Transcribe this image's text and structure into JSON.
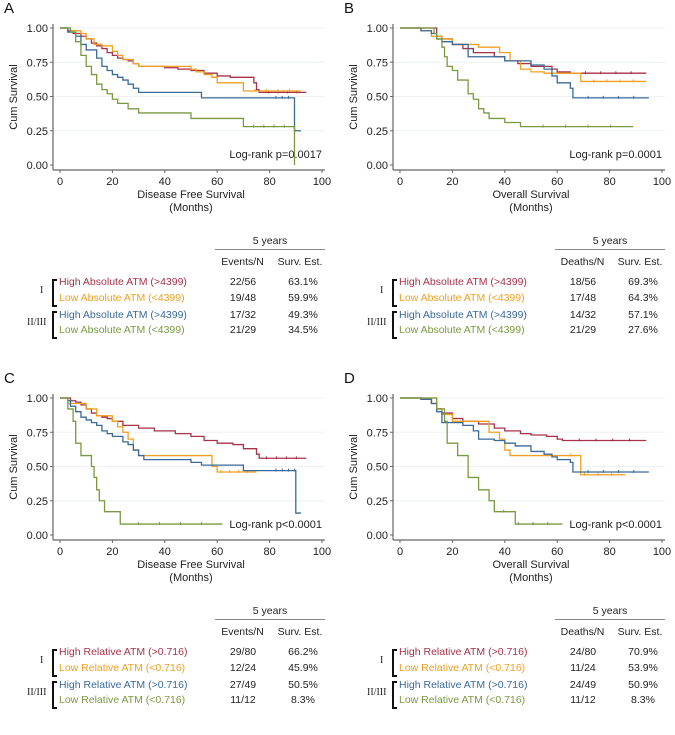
{
  "colors": {
    "high_I": "#a8324a",
    "low_I": "#f0a020",
    "high_II": "#3a6a9a",
    "low_II": "#7a9a40"
  },
  "chart_data": [
    {
      "panel": "A",
      "type": "line",
      "subtype": "kaplan-meier",
      "xlabel": "Disease Free Survival",
      "xlabel2": "(Months)",
      "ylabel": "Cum Survival",
      "xlim": [
        0,
        100
      ],
      "ylim": [
        0,
        1
      ],
      "xticks": [
        "0",
        "20",
        "40",
        "60",
        "80",
        "100"
      ],
      "yticks": [
        "0.00",
        "0.25",
        "0.50",
        "0.75",
        "1.00"
      ],
      "annotation": "Log-rank p=0.0017",
      "series": [
        {
          "name": "High Absolute ATM (>4399)",
          "group": "I",
          "color_key": "high_I",
          "x": [
            0,
            3,
            5,
            8,
            10,
            12,
            14,
            16,
            18,
            20,
            22,
            24,
            26,
            28,
            30,
            35,
            40,
            45,
            50,
            55,
            60,
            65,
            70,
            74,
            75,
            76,
            80,
            85,
            94
          ],
          "y": [
            1,
            0.98,
            0.96,
            0.94,
            0.92,
            0.89,
            0.87,
            0.85,
            0.82,
            0.8,
            0.78,
            0.77,
            0.76,
            0.74,
            0.72,
            0.72,
            0.71,
            0.7,
            0.69,
            0.67,
            0.65,
            0.64,
            0.64,
            0.6,
            0.55,
            0.53,
            0.53,
            0.53,
            0.53
          ]
        },
        {
          "name": "Low Absolute ATM (<4399)",
          "group": "I",
          "color_key": "low_I",
          "x": [
            0,
            4,
            8,
            10,
            13,
            16,
            20,
            22,
            24,
            28,
            30,
            40,
            45,
            50,
            52,
            55,
            58,
            60,
            65,
            70,
            75,
            80,
            92
          ],
          "y": [
            1,
            0.98,
            0.96,
            0.92,
            0.88,
            0.87,
            0.83,
            0.8,
            0.77,
            0.74,
            0.72,
            0.72,
            0.72,
            0.7,
            0.68,
            0.66,
            0.64,
            0.6,
            0.6,
            0.54,
            0.54,
            0.54,
            0.54
          ]
        },
        {
          "name": "High Absolute ATM (>4399)",
          "group": "II/III",
          "color_key": "high_II",
          "x": [
            0,
            3,
            6,
            8,
            10,
            14,
            16,
            18,
            20,
            22,
            24,
            26,
            28,
            30,
            40,
            50,
            54,
            60,
            70,
            80,
            89,
            89.5,
            92
          ],
          "y": [
            1,
            0.97,
            0.94,
            0.88,
            0.84,
            0.78,
            0.72,
            0.69,
            0.66,
            0.64,
            0.62,
            0.59,
            0.56,
            0.53,
            0.53,
            0.53,
            0.49,
            0.49,
            0.49,
            0.49,
            0.49,
            0.25,
            0.25
          ]
        },
        {
          "name": "Low Absolute ATM (<4399)",
          "group": "II/III",
          "color_key": "low_II",
          "x": [
            0,
            4,
            6,
            8,
            10,
            12,
            14,
            16,
            18,
            20,
            22,
            26,
            30,
            35,
            40,
            50,
            55,
            60,
            70,
            80,
            89,
            89.5
          ],
          "y": [
            1,
            0.97,
            0.9,
            0.8,
            0.72,
            0.66,
            0.59,
            0.55,
            0.52,
            0.48,
            0.45,
            0.41,
            0.38,
            0.38,
            0.38,
            0.34,
            0.34,
            0.34,
            0.28,
            0.28,
            0.28,
            0.0
          ]
        }
      ]
    },
    {
      "panel": "B",
      "type": "line",
      "subtype": "kaplan-meier",
      "xlabel": "Overall Survival",
      "xlabel2": "(Months)",
      "ylabel": "Cum Survival",
      "xlim": [
        0,
        100
      ],
      "ylim": [
        0,
        1
      ],
      "xticks": [
        "0",
        "20",
        "40",
        "60",
        "80",
        "100"
      ],
      "yticks": [
        "0.00",
        "0.25",
        "0.50",
        "0.75",
        "1.00"
      ],
      "annotation": "Log-rank p=0.0001",
      "series": [
        {
          "name": "High Absolute ATM (>4399)",
          "group": "I",
          "color_key": "high_I",
          "x": [
            0,
            12,
            14,
            16,
            20,
            24,
            28,
            36,
            40,
            45,
            50,
            55,
            58,
            60,
            65,
            70,
            80,
            94
          ],
          "y": [
            1,
            1,
            0.94,
            0.92,
            0.88,
            0.85,
            0.82,
            0.79,
            0.76,
            0.74,
            0.72,
            0.72,
            0.7,
            0.68,
            0.67,
            0.67,
            0.67,
            0.67
          ]
        },
        {
          "name": "Low Absolute ATM (<4399)",
          "group": "I",
          "color_key": "low_I",
          "x": [
            0,
            8,
            12,
            16,
            20,
            26,
            30,
            38,
            42,
            46,
            50,
            55,
            60,
            65,
            69,
            70,
            80,
            94
          ],
          "y": [
            1,
            0.98,
            0.94,
            0.92,
            0.88,
            0.88,
            0.86,
            0.82,
            0.76,
            0.7,
            0.68,
            0.67,
            0.67,
            0.67,
            0.61,
            0.61,
            0.61,
            0.61
          ]
        },
        {
          "name": "High Absolute ATM (>4399)",
          "group": "II/III",
          "color_key": "high_II",
          "x": [
            0,
            8,
            12,
            14,
            16,
            20,
            24,
            26,
            36,
            40,
            46,
            50,
            55,
            58,
            60,
            65,
            66,
            70,
            80,
            95
          ],
          "y": [
            1,
            0.98,
            0.96,
            0.92,
            0.9,
            0.88,
            0.88,
            0.79,
            0.79,
            0.76,
            0.76,
            0.73,
            0.7,
            0.65,
            0.6,
            0.56,
            0.49,
            0.49,
            0.49,
            0.49
          ]
        },
        {
          "name": "Low Absolute ATM (<4399)",
          "group": "II/III",
          "color_key": "low_II",
          "x": [
            0,
            12,
            13,
            14,
            16,
            17,
            18,
            20,
            22,
            26,
            28,
            30,
            32,
            34,
            36,
            40,
            46,
            60,
            80,
            89
          ],
          "y": [
            1,
            1,
            0.96,
            0.92,
            0.86,
            0.79,
            0.72,
            0.69,
            0.62,
            0.52,
            0.48,
            0.41,
            0.38,
            0.34,
            0.34,
            0.31,
            0.28,
            0.28,
            0.28,
            0.28
          ]
        }
      ]
    },
    {
      "panel": "C",
      "type": "line",
      "subtype": "kaplan-meier",
      "xlabel": "Disease Free Survival",
      "xlabel2": "(Months)",
      "ylabel": "Cum Survival",
      "xlim": [
        0,
        100
      ],
      "ylim": [
        0,
        1
      ],
      "xticks": [
        "0",
        "20",
        "40",
        "60",
        "80",
        "100"
      ],
      "yticks": [
        "0.00",
        "0.25",
        "0.50",
        "0.75",
        "1.00"
      ],
      "annotation": "Log-rank p<0.0001",
      "series": [
        {
          "name": "High Relative ATM (>0.716)",
          "group": "I",
          "color_key": "high_I",
          "x": [
            0,
            4,
            6,
            8,
            10,
            12,
            14,
            16,
            18,
            20,
            24,
            30,
            36,
            44,
            50,
            55,
            60,
            66,
            70,
            75,
            76,
            80,
            94
          ],
          "y": [
            1,
            0.98,
            0.97,
            0.95,
            0.92,
            0.89,
            0.87,
            0.86,
            0.85,
            0.83,
            0.8,
            0.78,
            0.76,
            0.74,
            0.72,
            0.69,
            0.67,
            0.66,
            0.63,
            0.59,
            0.56,
            0.56,
            0.56
          ]
        },
        {
          "name": "Low Relative ATM (<0.716)",
          "group": "I",
          "color_key": "low_I",
          "x": [
            0,
            3,
            8,
            10,
            14,
            20,
            22,
            24,
            26,
            28,
            30,
            40,
            50,
            58,
            60,
            70,
            75
          ],
          "y": [
            1,
            0.96,
            0.96,
            0.92,
            0.87,
            0.83,
            0.79,
            0.75,
            0.7,
            0.62,
            0.58,
            0.58,
            0.58,
            0.5,
            0.46,
            0.46,
            0.46
          ]
        },
        {
          "name": "High Relative ATM (>0.716)",
          "group": "II/III",
          "color_key": "high_II",
          "x": [
            0,
            3,
            4,
            6,
            8,
            10,
            12,
            14,
            16,
            18,
            20,
            24,
            26,
            28,
            30,
            32,
            40,
            50,
            54,
            60,
            70,
            80,
            89,
            90,
            92
          ],
          "y": [
            1,
            0.98,
            0.94,
            0.9,
            0.86,
            0.84,
            0.82,
            0.8,
            0.76,
            0.74,
            0.72,
            0.68,
            0.66,
            0.62,
            0.58,
            0.55,
            0.55,
            0.53,
            0.51,
            0.51,
            0.47,
            0.47,
            0.47,
            0.16,
            0.16
          ]
        },
        {
          "name": "Low Relative ATM (<0.716)",
          "group": "II/III",
          "color_key": "low_II",
          "x": [
            0,
            3,
            5,
            6,
            8,
            12,
            13,
            14,
            15,
            16,
            17,
            22,
            23,
            40,
            62
          ],
          "y": [
            1,
            0.92,
            0.83,
            0.67,
            0.58,
            0.5,
            0.42,
            0.33,
            0.25,
            0.25,
            0.17,
            0.17,
            0.08,
            0.08,
            0.08
          ]
        }
      ]
    },
    {
      "panel": "D",
      "type": "line",
      "subtype": "kaplan-meier",
      "xlabel": "Overall Survival",
      "xlabel2": "(Months)",
      "ylabel": "Cum Survival",
      "xlim": [
        0,
        100
      ],
      "ylim": [
        0,
        1
      ],
      "xticks": [
        "0",
        "20",
        "40",
        "60",
        "80",
        "100"
      ],
      "yticks": [
        "0.00",
        "0.25",
        "0.50",
        "0.75",
        "1.00"
      ],
      "annotation": "Log-rank p<0.0001",
      "series": [
        {
          "name": "High Relative ATM (>0.716)",
          "group": "I",
          "color_key": "high_I",
          "x": [
            0,
            8,
            12,
            14,
            16,
            20,
            24,
            30,
            36,
            40,
            46,
            50,
            56,
            60,
            62,
            70,
            80,
            94
          ],
          "y": [
            1,
            0.99,
            0.96,
            0.92,
            0.89,
            0.85,
            0.83,
            0.81,
            0.78,
            0.76,
            0.74,
            0.73,
            0.72,
            0.7,
            0.69,
            0.69,
            0.69,
            0.69
          ]
        },
        {
          "name": "Low Relative ATM (<0.716)",
          "group": "I",
          "color_key": "low_I",
          "x": [
            0,
            12,
            14,
            16,
            18,
            20,
            30,
            34,
            38,
            40,
            42,
            50,
            60,
            69,
            70,
            86
          ],
          "y": [
            1,
            1,
            0.92,
            0.88,
            0.88,
            0.83,
            0.83,
            0.75,
            0.7,
            0.62,
            0.58,
            0.58,
            0.58,
            0.44,
            0.44,
            0.44
          ]
        },
        {
          "name": "High Relative ATM (>0.716)",
          "group": "II/III",
          "color_key": "high_II",
          "x": [
            0,
            8,
            12,
            14,
            16,
            20,
            24,
            28,
            30,
            36,
            40,
            44,
            50,
            55,
            58,
            60,
            65,
            66,
            70,
            80,
            95
          ],
          "y": [
            1,
            0.99,
            0.96,
            0.9,
            0.82,
            0.82,
            0.8,
            0.76,
            0.7,
            0.69,
            0.67,
            0.65,
            0.61,
            0.59,
            0.57,
            0.55,
            0.53,
            0.46,
            0.46,
            0.46,
            0.46
          ]
        },
        {
          "name": "Low Relative ATM (<0.716)",
          "group": "II/III",
          "color_key": "low_II",
          "x": [
            0,
            12,
            14,
            17,
            18,
            22,
            26,
            30,
            34,
            36,
            44,
            62
          ],
          "y": [
            1,
            1,
            0.92,
            0.83,
            0.67,
            0.58,
            0.42,
            0.33,
            0.25,
            0.17,
            0.08,
            0.08
          ]
        }
      ]
    }
  ],
  "tables": [
    {
      "panel": "A",
      "header": "5 years",
      "col1": "Events/N",
      "col2": "Surv. Est.",
      "stages": [
        "I",
        "II/III"
      ],
      "rows": [
        {
          "label": "High Absolute ATM (>4399)",
          "color_key": "high_I",
          "n": "22/56",
          "est": "63.1%"
        },
        {
          "label": "Low Absolute ATM (<4399)",
          "color_key": "low_I",
          "n": "19/48",
          "est": "59.9%"
        },
        {
          "label": "High Absolute ATM (>4399)",
          "color_key": "high_II",
          "n": "17/32",
          "est": "49.3%"
        },
        {
          "label": "Low Absolute ATM (<4399)",
          "color_key": "low_II",
          "n": "21/29",
          "est": "34.5%"
        }
      ]
    },
    {
      "panel": "B",
      "header": "5 years",
      "col1": "Deaths/N",
      "col2": "Surv. Est.",
      "stages": [
        "I",
        "II/III"
      ],
      "rows": [
        {
          "label": "High Absolute ATM (>4399)",
          "color_key": "high_I",
          "n": "18/56",
          "est": "69.3%"
        },
        {
          "label": "Low Absolute ATM (<4399)",
          "color_key": "low_I",
          "n": "17/48",
          "est": "64.3%"
        },
        {
          "label": "High Absolute ATM (>4399)",
          "color_key": "high_II",
          "n": "14/32",
          "est": "57.1%"
        },
        {
          "label": "Low Absolute ATM (<4399)",
          "color_key": "low_II",
          "n": "21/29",
          "est": "27.6%"
        }
      ]
    },
    {
      "panel": "C",
      "header": "5 years",
      "col1": "Events/N",
      "col2": "Surv. Est.",
      "stages": [
        "I",
        "II/III"
      ],
      "rows": [
        {
          "label": "High Relative ATM (>0.716)",
          "color_key": "high_I",
          "n": "29/80",
          "est": "66.2%"
        },
        {
          "label": "Low Relative ATM (<0.716)",
          "color_key": "low_I",
          "n": "12/24",
          "est": "45.9%"
        },
        {
          "label": "High Relative ATM (>0.716)",
          "color_key": "high_II",
          "n": "27/49",
          "est": "50.5%"
        },
        {
          "label": "Low Relative ATM (<0.716)",
          "color_key": "low_II",
          "n": "11/12",
          "est": "8.3%"
        }
      ]
    },
    {
      "panel": "D",
      "header": "5 years",
      "col1": "Deaths/N",
      "col2": "Surv. Est.",
      "stages": [
        "I",
        "II/III"
      ],
      "rows": [
        {
          "label": "High Relative ATM (>0.716)",
          "color_key": "high_I",
          "n": "24/80",
          "est": "70.9%"
        },
        {
          "label": "Low Relative ATM (<0.716)",
          "color_key": "low_I",
          "n": "11/24",
          "est": "53.9%"
        },
        {
          "label": "High Relative ATM (>0.716)",
          "color_key": "high_II",
          "n": "24/49",
          "est": "50.9%"
        },
        {
          "label": "Low Relative ATM (<0.716)",
          "color_key": "low_II",
          "n": "11/12",
          "est": "8.3%"
        }
      ]
    }
  ]
}
